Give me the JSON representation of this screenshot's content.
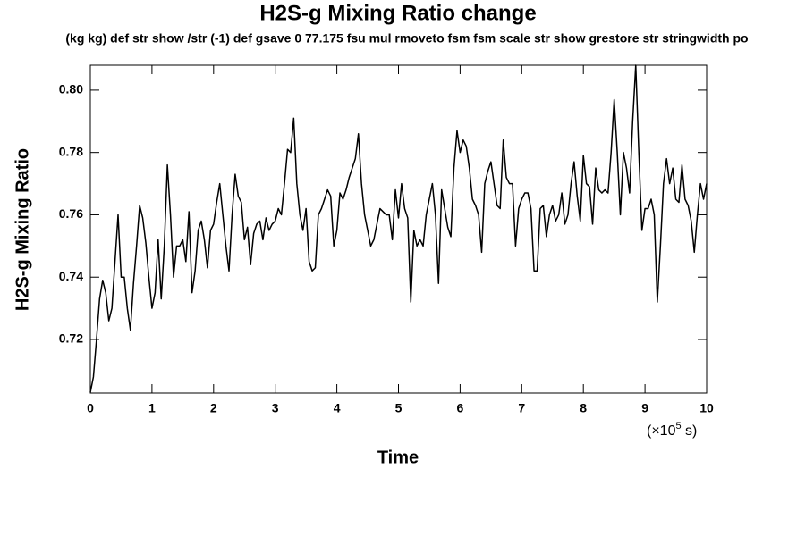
{
  "chart_data": {
    "type": "line",
    "title": "H2S-g Mixing Ratio change",
    "subtitle": "(kg kg) def str show /str (-1) def gsave 0 77.175 fsu mul rmoveto fsm fsm scale str show grestore str stringwidth po",
    "x_label": "Time",
    "x_unit_prefix": "(×10",
    "x_unit_exponent": "5",
    "x_unit_suffix": " s)",
    "y_label": "H2S-g Mixing Ratio",
    "xlim": [
      0,
      10
    ],
    "xticks": [
      0,
      1,
      2,
      3,
      4,
      5,
      6,
      7,
      8,
      9,
      10
    ],
    "ylim": [
      0.7028,
      0.808
    ],
    "yticks": [
      0.72,
      0.74,
      0.76,
      0.78,
      {
        "value": 0.8,
        "label": "0.80"
      }
    ],
    "grid": false,
    "x": [
      0,
      0.05,
      0.1,
      0.15,
      0.2,
      0.25,
      0.3,
      0.35,
      0.4,
      0.45,
      0.5,
      0.55,
      0.6,
      0.65,
      0.7,
      0.75,
      0.8,
      0.85,
      0.9,
      0.95,
      1,
      1.05,
      1.1,
      1.15,
      1.2,
      1.25,
      1.3,
      1.35,
      1.4,
      1.45,
      1.5,
      1.55,
      1.6,
      1.65,
      1.7,
      1.75,
      1.8,
      1.85,
      1.9,
      1.95,
      2,
      2.05,
      2.1,
      2.15,
      2.2,
      2.25,
      2.3,
      2.35,
      2.4,
      2.45,
      2.5,
      2.55,
      2.6,
      2.65,
      2.7,
      2.75,
      2.8,
      2.85,
      2.9,
      2.95,
      3,
      3.05,
      3.1,
      3.15,
      3.2,
      3.25,
      3.3,
      3.35,
      3.4,
      3.45,
      3.5,
      3.55,
      3.6,
      3.65,
      3.7,
      3.75,
      3.8,
      3.85,
      3.9,
      3.95,
      4,
      4.05,
      4.1,
      4.15,
      4.2,
      4.25,
      4.3,
      4.35,
      4.4,
      4.45,
      4.5,
      4.55,
      4.6,
      4.65,
      4.7,
      4.75,
      4.8,
      4.85,
      4.9,
      4.95,
      5,
      5.05,
      5.1,
      5.15,
      5.2,
      5.25,
      5.3,
      5.35,
      5.4,
      5.45,
      5.5,
      5.55,
      5.6,
      5.65,
      5.7,
      5.75,
      5.8,
      5.85,
      5.9,
      5.95,
      6,
      6.05,
      6.1,
      6.15,
      6.2,
      6.25,
      6.3,
      6.35,
      6.4,
      6.45,
      6.5,
      6.55,
      6.6,
      6.65,
      6.7,
      6.75,
      6.8,
      6.85,
      6.9,
      6.95,
      7,
      7.05,
      7.1,
      7.15,
      7.2,
      7.25,
      7.3,
      7.35,
      7.4,
      7.45,
      7.5,
      7.55,
      7.6,
      7.65,
      7.7,
      7.75,
      7.8,
      7.85,
      7.9,
      7.95,
      8,
      8.05,
      8.1,
      8.15,
      8.2,
      8.25,
      8.3,
      8.35,
      8.4,
      8.45,
      8.5,
      8.55,
      8.6,
      8.65,
      8.7,
      8.75,
      8.8,
      8.85,
      8.9,
      8.95,
      9,
      9.05,
      9.1,
      9.15,
      9.2,
      9.25,
      9.3,
      9.35,
      9.4,
      9.45,
      9.5,
      9.55,
      9.6,
      9.65,
      9.7,
      9.75,
      9.8,
      9.85,
      9.9,
      9.95,
      10
    ],
    "series": [
      {
        "color": "#000000",
        "values": [
          0.703,
          0.708,
          0.72,
          0.733,
          0.739,
          0.735,
          0.726,
          0.73,
          0.745,
          0.76,
          0.74,
          0.74,
          0.73,
          0.723,
          0.738,
          0.75,
          0.763,
          0.759,
          0.751,
          0.74,
          0.73,
          0.735,
          0.752,
          0.733,
          0.75,
          0.776,
          0.76,
          0.74,
          0.75,
          0.75,
          0.752,
          0.745,
          0.761,
          0.735,
          0.742,
          0.755,
          0.758,
          0.752,
          0.743,
          0.755,
          0.757,
          0.764,
          0.77,
          0.76,
          0.75,
          0.742,
          0.76,
          0.773,
          0.766,
          0.764,
          0.752,
          0.756,
          0.744,
          0.754,
          0.757,
          0.758,
          0.752,
          0.759,
          0.755,
          0.757,
          0.758,
          0.762,
          0.76,
          0.77,
          0.781,
          0.78,
          0.791,
          0.77,
          0.76,
          0.755,
          0.762,
          0.745,
          0.742,
          0.743,
          0.76,
          0.762,
          0.765,
          0.768,
          0.766,
          0.75,
          0.755,
          0.767,
          0.765,
          0.768,
          0.772,
          0.775,
          0.778,
          0.786,
          0.77,
          0.76,
          0.755,
          0.75,
          0.752,
          0.757,
          0.762,
          0.761,
          0.76,
          0.76,
          0.752,
          0.768,
          0.759,
          0.77,
          0.762,
          0.759,
          0.732,
          0.755,
          0.75,
          0.752,
          0.75,
          0.76,
          0.765,
          0.77,
          0.76,
          0.738,
          0.768,
          0.762,
          0.756,
          0.753,
          0.775,
          0.787,
          0.78,
          0.784,
          0.782,
          0.775,
          0.765,
          0.763,
          0.76,
          0.748,
          0.77,
          0.774,
          0.777,
          0.77,
          0.763,
          0.762,
          0.784,
          0.772,
          0.77,
          0.77,
          0.75,
          0.762,
          0.765,
          0.767,
          0.767,
          0.762,
          0.742,
          0.742,
          0.762,
          0.763,
          0.753,
          0.76,
          0.763,
          0.758,
          0.76,
          0.767,
          0.757,
          0.76,
          0.77,
          0.777,
          0.766,
          0.758,
          0.779,
          0.77,
          0.769,
          0.757,
          0.775,
          0.768,
          0.767,
          0.768,
          0.767,
          0.78,
          0.797,
          0.78,
          0.76,
          0.78,
          0.775,
          0.767,
          0.79,
          0.808,
          0.78,
          0.755,
          0.762,
          0.762,
          0.765,
          0.76,
          0.732,
          0.75,
          0.77,
          0.778,
          0.77,
          0.775,
          0.765,
          0.764,
          0.776,
          0.765,
          0.763,
          0.758,
          0.748,
          0.76,
          0.77,
          0.765,
          0.77
        ]
      }
    ]
  }
}
